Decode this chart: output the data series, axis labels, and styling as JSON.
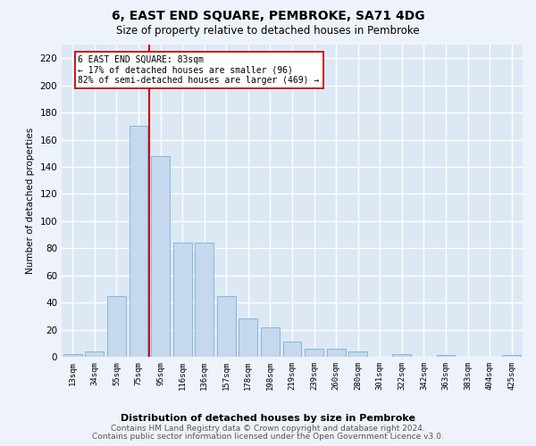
{
  "title": "6, EAST END SQUARE, PEMBROKE, SA71 4DG",
  "subtitle": "Size of property relative to detached houses in Pembroke",
  "xlabel": "Distribution of detached houses by size in Pembroke",
  "ylabel": "Number of detached properties",
  "footer_line1": "Contains HM Land Registry data © Crown copyright and database right 2024.",
  "footer_line2": "Contains public sector information licensed under the Open Government Licence v3.0.",
  "categories": [
    "13sqm",
    "34sqm",
    "55sqm",
    "75sqm",
    "95sqm",
    "116sqm",
    "136sqm",
    "157sqm",
    "178sqm",
    "198sqm",
    "219sqm",
    "239sqm",
    "260sqm",
    "280sqm",
    "301sqm",
    "322sqm",
    "342sqm",
    "363sqm",
    "383sqm",
    "404sqm",
    "425sqm"
  ],
  "values": [
    2,
    4,
    45,
    170,
    148,
    84,
    84,
    45,
    28,
    22,
    11,
    6,
    6,
    4,
    0,
    2,
    0,
    1,
    0,
    0,
    1
  ],
  "bar_color": "#c5d8ee",
  "bar_edge_color": "#7aaed4",
  "annotation_line1": "6 EAST END SQUARE: 83sqm",
  "annotation_line2": "← 17% of detached houses are smaller (96)",
  "annotation_line3": "82% of semi-detached houses are larger (469) →",
  "vline_color": "#cc0000",
  "annotation_box_facecolor": "#ffffff",
  "annotation_box_edgecolor": "#cc0000",
  "ylim_max": 230,
  "yticks": [
    0,
    20,
    40,
    60,
    80,
    100,
    120,
    140,
    160,
    180,
    200,
    220
  ],
  "bg_color": "#dde8f5",
  "grid_color": "#ffffff",
  "fig_bg_color": "#eef3fb"
}
